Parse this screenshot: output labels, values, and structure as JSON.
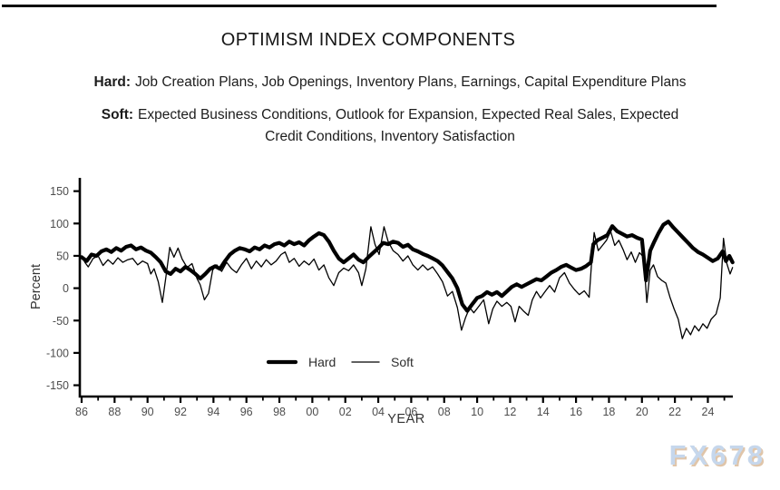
{
  "header": {
    "title": "OPTIMISM INDEX COMPONENTS",
    "hard_line": {
      "prefix": "Hard:",
      "text": "Job Creation Plans, Job Openings, Inventory Plans, Earnings, Capital Expenditure Plans"
    },
    "soft_line": {
      "prefix": "Soft:",
      "line1": "Expected Business Conditions, Outlook for Expansion, Expected Real Sales, Expected",
      "line2": "Credit Conditions, Inventory Satisfaction"
    }
  },
  "watermark": "FX678",
  "colors": {
    "line": "#000000",
    "axis": "#000000",
    "tick_label": "#4d4d4d",
    "axis_label": "#333333",
    "watermark_fill": "#c6d7ec",
    "watermark_shadow": "#d6b28c",
    "background": "#ffffff"
  },
  "chart_data": {
    "type": "line",
    "title": "",
    "xlabel": "YEAR",
    "ylabel": "Percent",
    "xlim": [
      1986,
      2025.6
    ],
    "ylim": [
      -150,
      150
    ],
    "grid": false,
    "legend_position": "inside-bottom-center",
    "y_ticks": [
      150,
      100,
      50,
      0,
      -50,
      -100,
      -150
    ],
    "y_tick_labels": [
      "150",
      "100",
      "50",
      "0",
      "-50",
      "-100",
      "-150"
    ],
    "x_major_years": [
      1986,
      1988,
      1990,
      1992,
      1994,
      1996,
      1998,
      2000,
      2002,
      2004,
      2006,
      2008,
      2010,
      2012,
      2014,
      2016,
      2018,
      2020,
      2022,
      2024
    ],
    "x_tick_labels": [
      "86",
      "88",
      "90",
      "92",
      "94",
      "96",
      "98",
      "00",
      "02",
      "04",
      "06",
      "08",
      "10",
      "12",
      "14",
      "16",
      "18",
      "20",
      "22",
      "24"
    ],
    "x_minor_years": [
      1987,
      1989,
      1991,
      1993,
      1995,
      1997,
      1999,
      2001,
      2003,
      2005,
      2007,
      2009,
      2011,
      2013,
      2015,
      2017,
      2019,
      2021,
      2023,
      2025
    ],
    "legend": [
      {
        "name": "Hard",
        "stroke_width": 4.2
      },
      {
        "name": "Soft",
        "stroke_width": 1.3
      }
    ],
    "series": [
      {
        "name": "Hard",
        "stroke_width": 4.2,
        "points": [
          [
            1986.0,
            48
          ],
          [
            1986.3,
            42
          ],
          [
            1986.6,
            52
          ],
          [
            1986.9,
            50
          ],
          [
            1987.2,
            57
          ],
          [
            1987.5,
            60
          ],
          [
            1987.8,
            56
          ],
          [
            1988.1,
            62
          ],
          [
            1988.4,
            58
          ],
          [
            1988.7,
            64
          ],
          [
            1989.0,
            66
          ],
          [
            1989.3,
            60
          ],
          [
            1989.6,
            63
          ],
          [
            1989.9,
            58
          ],
          [
            1990.2,
            55
          ],
          [
            1990.5,
            48
          ],
          [
            1990.8,
            40
          ],
          [
            1991.1,
            26
          ],
          [
            1991.4,
            22
          ],
          [
            1991.7,
            30
          ],
          [
            1992.0,
            26
          ],
          [
            1992.3,
            33
          ],
          [
            1992.6,
            28
          ],
          [
            1992.9,
            22
          ],
          [
            1993.2,
            15
          ],
          [
            1993.5,
            22
          ],
          [
            1993.8,
            30
          ],
          [
            1994.1,
            34
          ],
          [
            1994.4,
            30
          ],
          [
            1994.7,
            42
          ],
          [
            1995.0,
            52
          ],
          [
            1995.3,
            58
          ],
          [
            1995.6,
            62
          ],
          [
            1995.9,
            60
          ],
          [
            1996.2,
            57
          ],
          [
            1996.5,
            63
          ],
          [
            1996.8,
            60
          ],
          [
            1997.1,
            66
          ],
          [
            1997.4,
            63
          ],
          [
            1997.7,
            68
          ],
          [
            1998.0,
            70
          ],
          [
            1998.3,
            66
          ],
          [
            1998.6,
            72
          ],
          [
            1998.9,
            68
          ],
          [
            1999.2,
            71
          ],
          [
            1999.5,
            66
          ],
          [
            1999.8,
            74
          ],
          [
            2000.1,
            80
          ],
          [
            2000.4,
            85
          ],
          [
            2000.7,
            82
          ],
          [
            2001.0,
            72
          ],
          [
            2001.3,
            58
          ],
          [
            2001.6,
            46
          ],
          [
            2001.9,
            40
          ],
          [
            2002.2,
            46
          ],
          [
            2002.5,
            52
          ],
          [
            2002.8,
            44
          ],
          [
            2003.1,
            40
          ],
          [
            2003.4,
            48
          ],
          [
            2003.7,
            55
          ],
          [
            2004.0,
            62
          ],
          [
            2004.3,
            70
          ],
          [
            2004.6,
            68
          ],
          [
            2004.9,
            72
          ],
          [
            2005.2,
            70
          ],
          [
            2005.5,
            64
          ],
          [
            2005.8,
            67
          ],
          [
            2006.1,
            60
          ],
          [
            2006.4,
            57
          ],
          [
            2006.7,
            53
          ],
          [
            2007.0,
            50
          ],
          [
            2007.3,
            46
          ],
          [
            2007.6,
            42
          ],
          [
            2007.9,
            35
          ],
          [
            2008.2,
            25
          ],
          [
            2008.5,
            15
          ],
          [
            2008.8,
            0
          ],
          [
            2009.1,
            -25
          ],
          [
            2009.4,
            -35
          ],
          [
            2009.7,
            -25
          ],
          [
            2010.0,
            -15
          ],
          [
            2010.3,
            -12
          ],
          [
            2010.6,
            -6
          ],
          [
            2010.9,
            -10
          ],
          [
            2011.2,
            -6
          ],
          [
            2011.5,
            -12
          ],
          [
            2011.8,
            -5
          ],
          [
            2012.1,
            2
          ],
          [
            2012.4,
            6
          ],
          [
            2012.7,
            2
          ],
          [
            2013.0,
            6
          ],
          [
            2013.3,
            10
          ],
          [
            2013.6,
            14
          ],
          [
            2013.9,
            12
          ],
          [
            2014.2,
            18
          ],
          [
            2014.5,
            24
          ],
          [
            2014.8,
            28
          ],
          [
            2015.1,
            33
          ],
          [
            2015.4,
            36
          ],
          [
            2015.7,
            32
          ],
          [
            2016.0,
            28
          ],
          [
            2016.3,
            30
          ],
          [
            2016.6,
            34
          ],
          [
            2016.9,
            40
          ],
          [
            2017.05,
            68
          ],
          [
            2017.3,
            74
          ],
          [
            2017.6,
            78
          ],
          [
            2017.9,
            82
          ],
          [
            2018.2,
            96
          ],
          [
            2018.5,
            88
          ],
          [
            2018.8,
            84
          ],
          [
            2019.1,
            80
          ],
          [
            2019.4,
            82
          ],
          [
            2019.7,
            78
          ],
          [
            2020.0,
            75
          ],
          [
            2020.25,
            12
          ],
          [
            2020.5,
            58
          ],
          [
            2020.75,
            72
          ],
          [
            2021.0,
            85
          ],
          [
            2021.3,
            98
          ],
          [
            2021.6,
            103
          ],
          [
            2021.9,
            94
          ],
          [
            2022.2,
            86
          ],
          [
            2022.5,
            78
          ],
          [
            2022.8,
            70
          ],
          [
            2023.1,
            62
          ],
          [
            2023.4,
            56
          ],
          [
            2023.7,
            52
          ],
          [
            2024.0,
            47
          ],
          [
            2024.3,
            42
          ],
          [
            2024.6,
            46
          ],
          [
            2024.9,
            57
          ],
          [
            2025.1,
            42
          ],
          [
            2025.3,
            50
          ],
          [
            2025.5,
            40
          ]
        ]
      },
      {
        "name": "Soft",
        "stroke_width": 1.3,
        "points": [
          [
            1986.0,
            50
          ],
          [
            1986.2,
            40
          ],
          [
            1986.4,
            33
          ],
          [
            1986.7,
            46
          ],
          [
            1987.0,
            50
          ],
          [
            1987.3,
            35
          ],
          [
            1987.6,
            44
          ],
          [
            1987.9,
            37
          ],
          [
            1988.2,
            47
          ],
          [
            1988.5,
            40
          ],
          [
            1988.8,
            44
          ],
          [
            1989.1,
            46
          ],
          [
            1989.4,
            36
          ],
          [
            1989.7,
            42
          ],
          [
            1990.0,
            38
          ],
          [
            1990.2,
            22
          ],
          [
            1990.4,
            30
          ],
          [
            1990.65,
            10
          ],
          [
            1990.9,
            -22
          ],
          [
            1991.1,
            15
          ],
          [
            1991.35,
            63
          ],
          [
            1991.6,
            48
          ],
          [
            1991.85,
            62
          ],
          [
            1992.1,
            45
          ],
          [
            1992.4,
            32
          ],
          [
            1992.7,
            38
          ],
          [
            1993.0,
            15
          ],
          [
            1993.2,
            5
          ],
          [
            1993.45,
            -18
          ],
          [
            1993.7,
            -8
          ],
          [
            1993.95,
            28
          ],
          [
            1994.2,
            36
          ],
          [
            1994.5,
            26
          ],
          [
            1994.8,
            40
          ],
          [
            1995.1,
            30
          ],
          [
            1995.4,
            24
          ],
          [
            1995.7,
            36
          ],
          [
            1996.0,
            46
          ],
          [
            1996.3,
            30
          ],
          [
            1996.6,
            42
          ],
          [
            1996.9,
            33
          ],
          [
            1997.2,
            44
          ],
          [
            1997.5,
            36
          ],
          [
            1997.8,
            42
          ],
          [
            1998.1,
            52
          ],
          [
            1998.35,
            56
          ],
          [
            1998.6,
            40
          ],
          [
            1998.9,
            46
          ],
          [
            1999.2,
            34
          ],
          [
            1999.5,
            42
          ],
          [
            1999.8,
            36
          ],
          [
            2000.1,
            45
          ],
          [
            2000.4,
            28
          ],
          [
            2000.7,
            36
          ],
          [
            2001.0,
            16
          ],
          [
            2001.3,
            4
          ],
          [
            2001.6,
            24
          ],
          [
            2001.9,
            31
          ],
          [
            2002.2,
            27
          ],
          [
            2002.5,
            36
          ],
          [
            2002.8,
            24
          ],
          [
            2003.0,
            4
          ],
          [
            2003.25,
            30
          ],
          [
            2003.55,
            95
          ],
          [
            2003.8,
            68
          ],
          [
            2004.05,
            52
          ],
          [
            2004.35,
            95
          ],
          [
            2004.6,
            72
          ],
          [
            2004.9,
            58
          ],
          [
            2005.2,
            52
          ],
          [
            2005.5,
            42
          ],
          [
            2005.8,
            50
          ],
          [
            2006.1,
            36
          ],
          [
            2006.4,
            28
          ],
          [
            2006.7,
            36
          ],
          [
            2007.0,
            28
          ],
          [
            2007.3,
            33
          ],
          [
            2007.6,
            22
          ],
          [
            2007.9,
            10
          ],
          [
            2008.2,
            -12
          ],
          [
            2008.5,
            -5
          ],
          [
            2008.8,
            -30
          ],
          [
            2009.05,
            -65
          ],
          [
            2009.3,
            -45
          ],
          [
            2009.55,
            -30
          ],
          [
            2009.8,
            -38
          ],
          [
            2010.1,
            -28
          ],
          [
            2010.4,
            -18
          ],
          [
            2010.7,
            -55
          ],
          [
            2010.95,
            -32
          ],
          [
            2011.2,
            -20
          ],
          [
            2011.5,
            -28
          ],
          [
            2011.8,
            -22
          ],
          [
            2012.05,
            -28
          ],
          [
            2012.3,
            -52
          ],
          [
            2012.55,
            -28
          ],
          [
            2012.8,
            -35
          ],
          [
            2013.1,
            -42
          ],
          [
            2013.35,
            -18
          ],
          [
            2013.6,
            -5
          ],
          [
            2013.85,
            -15
          ],
          [
            2014.1,
            -6
          ],
          [
            2014.4,
            4
          ],
          [
            2014.7,
            -6
          ],
          [
            2015.0,
            16
          ],
          [
            2015.3,
            24
          ],
          [
            2015.6,
            8
          ],
          [
            2015.9,
            -2
          ],
          [
            2016.2,
            -10
          ],
          [
            2016.5,
            -4
          ],
          [
            2016.8,
            -14
          ],
          [
            2016.95,
            42
          ],
          [
            2017.1,
            86
          ],
          [
            2017.35,
            58
          ],
          [
            2017.6,
            66
          ],
          [
            2017.85,
            74
          ],
          [
            2018.1,
            88
          ],
          [
            2018.35,
            66
          ],
          [
            2018.6,
            74
          ],
          [
            2018.85,
            60
          ],
          [
            2019.1,
            44
          ],
          [
            2019.35,
            56
          ],
          [
            2019.6,
            40
          ],
          [
            2019.85,
            55
          ],
          [
            2020.1,
            48
          ],
          [
            2020.3,
            -22
          ],
          [
            2020.5,
            28
          ],
          [
            2020.7,
            36
          ],
          [
            2020.95,
            18
          ],
          [
            2021.2,
            12
          ],
          [
            2021.45,
            8
          ],
          [
            2021.7,
            -14
          ],
          [
            2021.95,
            -32
          ],
          [
            2022.2,
            -48
          ],
          [
            2022.45,
            -78
          ],
          [
            2022.7,
            -62
          ],
          [
            2022.95,
            -72
          ],
          [
            2023.2,
            -58
          ],
          [
            2023.45,
            -66
          ],
          [
            2023.7,
            -55
          ],
          [
            2023.95,
            -62
          ],
          [
            2024.2,
            -48
          ],
          [
            2024.5,
            -40
          ],
          [
            2024.75,
            -15
          ],
          [
            2024.95,
            77
          ],
          [
            2025.15,
            38
          ],
          [
            2025.35,
            22
          ],
          [
            2025.5,
            32
          ]
        ]
      }
    ]
  }
}
